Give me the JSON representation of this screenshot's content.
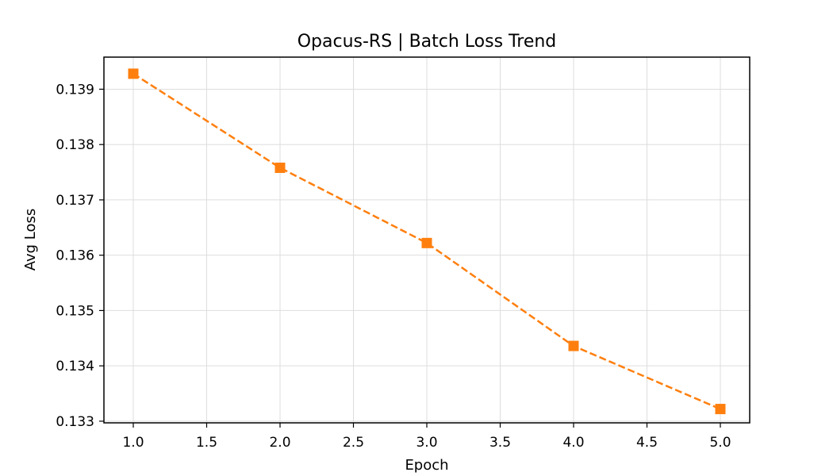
{
  "chart_data": {
    "type": "line",
    "title": "Opacus-RS | Batch Loss Trend",
    "xlabel": "Epoch",
    "ylabel": "Avg Loss",
    "xlim": [
      0.8,
      5.2
    ],
    "ylim": [
      0.13297,
      0.13958
    ],
    "x_ticks": [
      1.0,
      1.5,
      2.0,
      2.5,
      3.0,
      3.5,
      4.0,
      4.5,
      5.0
    ],
    "x_tick_labels": [
      "1.0",
      "1.5",
      "2.0",
      "2.5",
      "3.0",
      "3.5",
      "4.0",
      "4.5",
      "5.0"
    ],
    "y_ticks": [
      0.133,
      0.134,
      0.135,
      0.136,
      0.137,
      0.138,
      0.139
    ],
    "y_tick_labels": [
      "0.133",
      "0.134",
      "0.135",
      "0.136",
      "0.137",
      "0.138",
      "0.139"
    ],
    "grid": true,
    "series": [
      {
        "color": "#ff7f0e",
        "line_style": "dashed",
        "marker": "square",
        "x": [
          1,
          2,
          3,
          4,
          5
        ],
        "y": [
          0.13928,
          0.13758,
          0.13622,
          0.13436,
          0.13322
        ]
      }
    ]
  }
}
